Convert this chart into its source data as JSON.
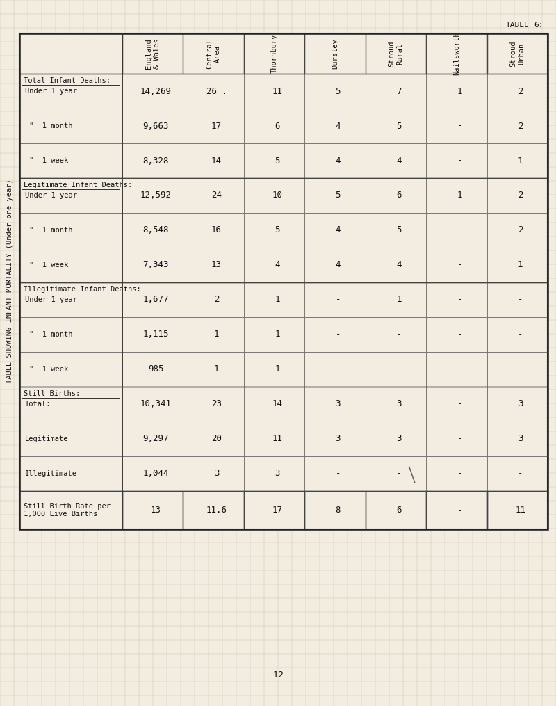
{
  "title": "TABLE SHOWING INFANT MORTALITY (Under one year)",
  "table_label": "TABLE",
  "table_number": "6:",
  "page_number": "- 12 -",
  "background_color": "#f2ede0",
  "col_headers": [
    "England\n& Wales",
    "Central\nArea",
    "Thornbury",
    "Dursley",
    "Stroud\nRural",
    "Nailsworth",
    "Stroud\nUrban"
  ],
  "row_groups": [
    {
      "group_label": "Total Infant Deaths:",
      "rows": [
        {
          "label": "Under 1 year",
          "values": [
            "14,269",
            "26 .",
            "11",
            "5",
            "7",
            "1",
            "2"
          ]
        },
        {
          "label": "\"  1 month",
          "values": [
            "9,663",
            "17",
            "6",
            "4",
            "5",
            "-",
            "2"
          ]
        },
        {
          "label": "\"  1 week",
          "values": [
            "8,328",
            "14",
            "5",
            "4",
            "4",
            "-",
            "1"
          ]
        }
      ]
    },
    {
      "group_label": "Legitimate Infant Deaths:",
      "rows": [
        {
          "label": "Under 1 year",
          "values": [
            "12,592",
            "24",
            "10",
            "5",
            "6",
            "1",
            "2"
          ]
        },
        {
          "label": "\"  1 month",
          "values": [
            "8,548",
            "16",
            "5",
            "4",
            "5",
            "-",
            "2"
          ]
        },
        {
          "label": "\"  1 week",
          "values": [
            "7,343",
            "13",
            "4",
            "4",
            "4",
            "-",
            "1"
          ]
        }
      ]
    },
    {
      "group_label": "Illegitimate Infant Deaths:",
      "rows": [
        {
          "label": "Under 1 year",
          "values": [
            "1,677",
            "2",
            "1",
            "-",
            "1",
            "-",
            "-"
          ]
        },
        {
          "label": "\"  1 month",
          "values": [
            "1,115",
            "1",
            "1",
            "-",
            "-",
            "-",
            "-"
          ]
        },
        {
          "label": "\"  1 week",
          "values": [
            "985",
            "1",
            "1",
            "-",
            "-",
            "-",
            "-"
          ]
        }
      ]
    },
    {
      "group_label": "Still Births:",
      "rows": [
        {
          "label": "Total:",
          "values": [
            "10,341",
            "23",
            "14",
            "3",
            "3",
            "-",
            "3"
          ]
        },
        {
          "label": "Legitimate",
          "values": [
            "9,297",
            "20",
            "11",
            "3",
            "3",
            "-",
            "3"
          ]
        },
        {
          "label": "Illegitimate",
          "values": [
            "1,044",
            "3",
            "3",
            "-",
            "-",
            "-",
            "-"
          ]
        }
      ]
    }
  ],
  "last_row": {
    "label": "Still Birth Rate per\n1,000 Live Births",
    "values": [
      "13",
      "11.6",
      "17",
      "8",
      "6",
      "-",
      "11"
    ]
  },
  "dash_symbol": "-"
}
